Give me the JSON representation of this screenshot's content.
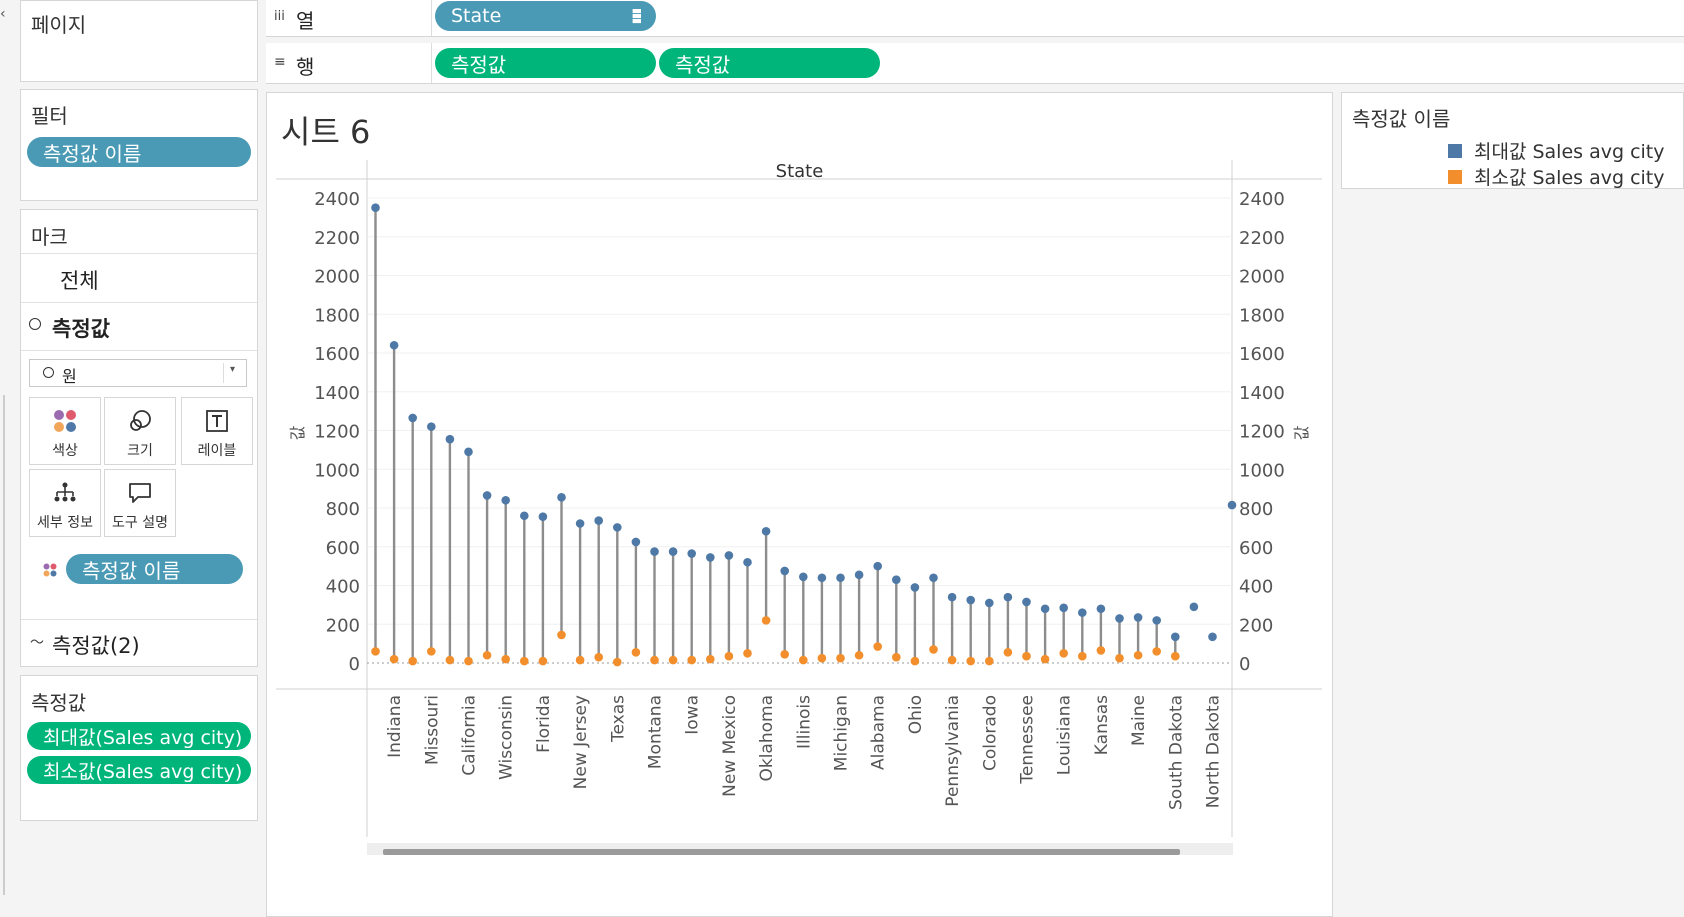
{
  "sidebar": {
    "pages_title": "페이지",
    "filters_title": "필터",
    "filter_pill": "측정값 이름",
    "marks_title": "마크",
    "marks_all": "전체",
    "marks_measure": "측정값",
    "marks_measure2": "측정값(2)",
    "mark_type": "원",
    "buttons": {
      "color": "색상",
      "size": "크기",
      "label": "레이블",
      "detail": "세부 정보",
      "tooltip": "도구 설명"
    },
    "color_pill": "측정값 이름",
    "measures_title": "측정값",
    "measures": [
      "최대값(Sales avg city)",
      "최소값(Sales avg city)"
    ]
  },
  "shelves": {
    "columns_label": "열",
    "columns_pill": "State",
    "rows_label": "행",
    "rows_pills": [
      "측정값",
      "측정값"
    ]
  },
  "sheet": {
    "title": "시트 6"
  },
  "legend": {
    "title": "측정값 이름",
    "items": [
      {
        "label": "최대값 Sales avg city",
        "color": "#4e79a7"
      },
      {
        "label": "최소값 Sales avg city",
        "color": "#f28e2b"
      }
    ]
  },
  "chart_data": {
    "type": "scatter",
    "title": "State",
    "ylabel": "값",
    "ylim": [
      0,
      2400
    ],
    "yticks": [
      0,
      200,
      400,
      600,
      800,
      1000,
      1200,
      1400,
      1600,
      1800,
      2000,
      2200,
      2400
    ],
    "states": [
      "",
      "Indiana",
      "",
      "Missouri",
      "",
      "California",
      "",
      "Wisconsin",
      "",
      "Florida",
      "",
      "New Jersey",
      "",
      "Texas",
      "",
      "Montana",
      "",
      "Iowa",
      "",
      "New Mexico",
      "",
      "Oklahoma",
      "",
      "Illinois",
      "",
      "Michigan",
      "",
      "Alabama",
      "",
      "Ohio",
      "",
      "Pennsylvania",
      "",
      "Colorado",
      "",
      "Tennessee",
      "",
      "Louisiana",
      "",
      "Kansas",
      "",
      "Maine",
      "",
      "South Dakota",
      "",
      "North Dakota"
    ],
    "series": [
      {
        "name": "최대값 Sales avg city",
        "color": "#4e79a7",
        "values": [
          2350,
          1640,
          1265,
          1220,
          1155,
          1090,
          865,
          840,
          760,
          755,
          855,
          720,
          735,
          700,
          625,
          575,
          575,
          565,
          545,
          555,
          520,
          680,
          475,
          445,
          440,
          440,
          455,
          500,
          430,
          390,
          440,
          340,
          325,
          310,
          340,
          315,
          280,
          285,
          260,
          280,
          230,
          235,
          220,
          135,
          290,
          135
        ]
      },
      {
        "name": "최소값 Sales avg city",
        "color": "#f28e2b",
        "values": [
          60,
          20,
          10,
          60,
          15,
          10,
          40,
          20,
          10,
          10,
          145,
          15,
          30,
          5,
          55,
          15,
          15,
          15,
          20,
          35,
          50,
          220,
          45,
          15,
          25,
          25,
          40,
          85,
          30,
          10,
          70,
          15,
          10,
          10,
          55,
          35,
          20,
          50,
          35,
          65,
          25,
          40,
          60,
          35,
          null,
          null
        ]
      }
    ],
    "secondary_axis_offscreen_value": 815
  }
}
